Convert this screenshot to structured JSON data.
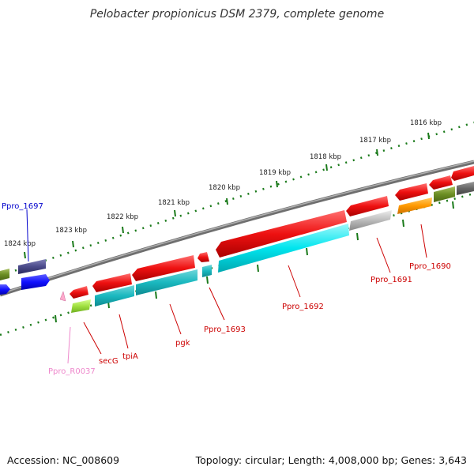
{
  "title": "Pelobacter propionicus DSM 2379, complete genome",
  "footer": {
    "accession": "Accession: NC_008609",
    "topology": "Topology: circular; Length: 4,008,000 bp; Genes: 3,643"
  },
  "ticks": [
    "1816 kbp",
    "1817 kbp",
    "1818 kbp",
    "1819 kbp",
    "1820 kbp",
    "1821 kbp",
    "1822 kbp",
    "1823 kbp",
    "1824 kbp"
  ],
  "gene_labels": [
    {
      "text": "Ppro_1697",
      "color": "#0000cc"
    },
    {
      "text": "Ppro_1690",
      "color": "#cc0000"
    },
    {
      "text": "Ppro_1691",
      "color": "#cc0000"
    },
    {
      "text": "Ppro_1692",
      "color": "#cc0000"
    },
    {
      "text": "Ppro_1693",
      "color": "#cc0000"
    },
    {
      "text": "pgk",
      "color": "#cc0000"
    },
    {
      "text": "tpiA",
      "color": "#cc0000"
    },
    {
      "text": "secG",
      "color": "#cc0000"
    },
    {
      "text": "Ppro_R0037",
      "color": "#ee88cc"
    }
  ],
  "colors": {
    "backbone": "#808080",
    "tick_dots": "#1a7a1a",
    "red_gene": "#ee1111",
    "cyan_gene": "#00e5ee",
    "teal_gene": "#1ab8bf",
    "gray_gene": "#bbbbbb",
    "orange_gene": "#ff9900",
    "olive_gene": "#6b8e23",
    "navy_gene": "#4a4a8a",
    "blue_gene": "#1010ff",
    "lime_gene": "#a0e040",
    "pink_rna": "#ffaacc"
  }
}
